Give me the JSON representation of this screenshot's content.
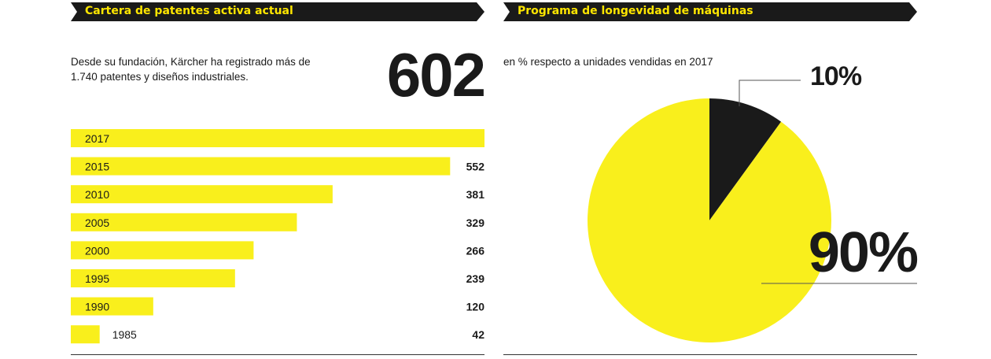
{
  "left_panel": {
    "title": "Cartera de patentes activa actual",
    "description": "Desde su fundación, Kärcher ha registrado más de 1.740 patentes y diseños industriales.",
    "highlight_value": "602"
  },
  "right_panel": {
    "title": "Programa de longevidad de máquinas",
    "subtitle": "en % respecto a unidades vendidas en 2017"
  },
  "colors": {
    "yellow": "#f9ef1c",
    "black": "#1a1a1a",
    "banner_yellow": "#ffe600"
  },
  "chart_data": [
    {
      "type": "bar",
      "orientation": "horizontal",
      "title": "Cartera de patentes activa actual",
      "categories": [
        "2017",
        "2015",
        "2010",
        "2005",
        "2000",
        "1995",
        "1990",
        "1985"
      ],
      "values": [
        602,
        552,
        381,
        329,
        266,
        239,
        120,
        42
      ],
      "value_labels": [
        "",
        "552",
        "381",
        "329",
        "266",
        "239",
        "120",
        "42"
      ],
      "xlim": [
        0,
        602
      ],
      "grid": false
    },
    {
      "type": "pie",
      "title": "Programa de longevidad de máquinas",
      "subtitle": "en % respecto a unidades vendidas en 2017",
      "slices": [
        {
          "value": 10,
          "label": "10%",
          "color": "#1a1a1a"
        },
        {
          "value": 90,
          "label": "90%",
          "color": "#f9ef1c"
        }
      ]
    }
  ]
}
